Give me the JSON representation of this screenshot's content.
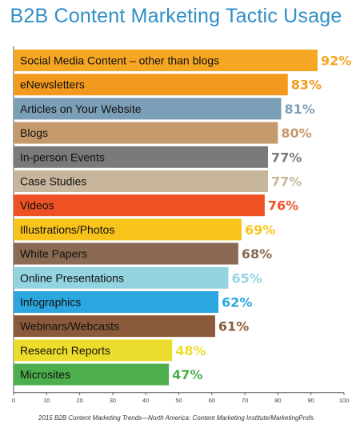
{
  "chart_data": {
    "type": "bar",
    "orientation": "horizontal",
    "title": "B2B Content Marketing Tactic Usage",
    "source": "2015 B2B Content Marketing Trends—North America: Content Marketing Institute/MarketingProfs",
    "categories": [
      "Social Media Content – other than blogs",
      "eNewsletters",
      "Articles on Your Website",
      "Blogs",
      "In-person Events",
      "Case Studies",
      "Videos",
      "Illustrations/Photos",
      "White Papers",
      "Online Presentations",
      "Infographics",
      "Webinars/Webcasts",
      "Research Reports",
      "Microsites"
    ],
    "values": [
      92,
      83,
      81,
      80,
      77,
      77,
      76,
      69,
      68,
      65,
      62,
      61,
      48,
      47
    ],
    "value_labels": [
      "92%",
      "83%",
      "81%",
      "80%",
      "77%",
      "77%",
      "76%",
      "69%",
      "68%",
      "65%",
      "62%",
      "61%",
      "48%",
      "47%"
    ],
    "colors": [
      "#f5a623",
      "#f39a1e",
      "#7c9fb8",
      "#c49a6c",
      "#7a7a7a",
      "#c8b69c",
      "#ee5124",
      "#f8c31a",
      "#8a6a52",
      "#92d4e0",
      "#2ba6de",
      "#8a5a3a",
      "#ecdd2c",
      "#4cae4c"
    ],
    "xlim": [
      0,
      100
    ],
    "xticks": [
      0,
      10,
      20,
      30,
      40,
      50,
      60,
      70,
      80,
      90,
      100
    ],
    "grid": false,
    "legend": "none"
  }
}
